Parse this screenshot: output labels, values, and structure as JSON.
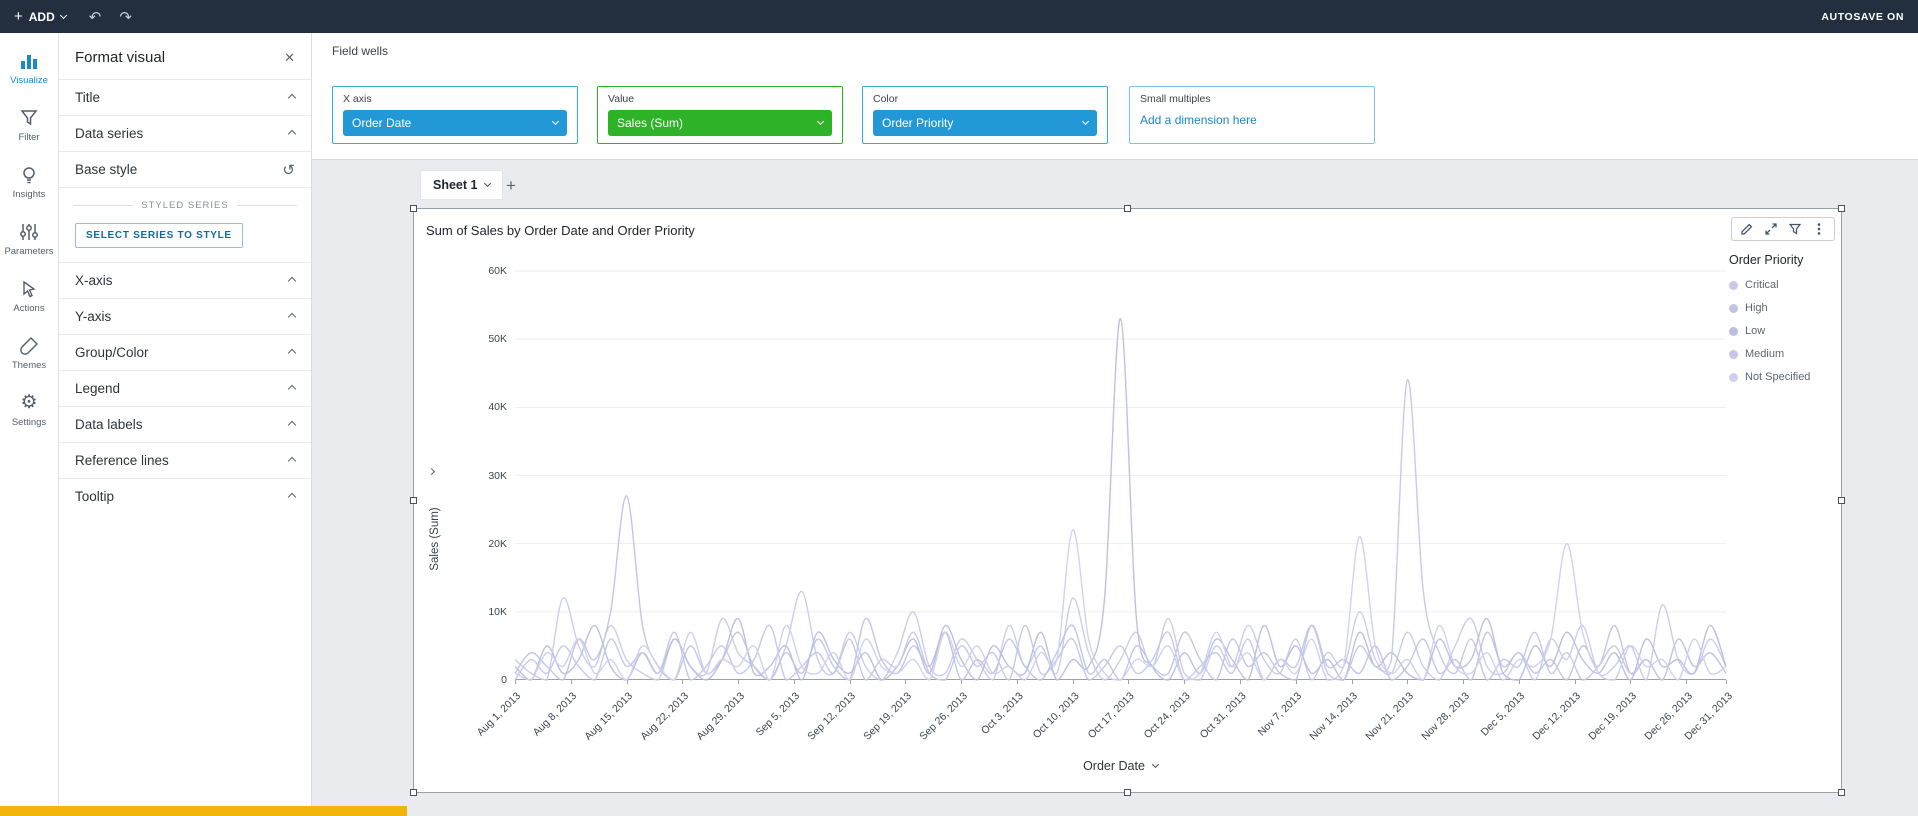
{
  "top_bar": {
    "add_label": "ADD",
    "autosave_label": "AUTOSAVE ON"
  },
  "nav_rail": {
    "items": [
      {
        "label": "Visualize",
        "icon": "bar-chart-icon",
        "active": true
      },
      {
        "label": "Filter",
        "icon": "funnel-icon",
        "active": false
      },
      {
        "label": "Insights",
        "icon": "lightbulb-icon",
        "active": false
      },
      {
        "label": "Parameters",
        "icon": "sliders-icon",
        "active": false
      },
      {
        "label": "Actions",
        "icon": "cursor-icon",
        "active": false
      },
      {
        "label": "Themes",
        "icon": "brush-icon",
        "active": false
      },
      {
        "label": "Settings",
        "icon": "gear-icon",
        "active": false
      }
    ]
  },
  "format_panel": {
    "title": "Format visual",
    "sections": [
      "Title",
      "Data series",
      "Base style",
      "X-axis",
      "Y-axis",
      "Group/Color",
      "Legend",
      "Data labels",
      "Reference lines",
      "Tooltip"
    ],
    "styled_series_label": "STYLED SERIES",
    "select_series_button": "SELECT SERIES TO STYLE"
  },
  "field_wells": {
    "label": "Field wells",
    "wells": [
      {
        "name": "X axis",
        "value": "Order Date",
        "accent_color": "#2398d6"
      },
      {
        "name": "Value",
        "value": "Sales (Sum)",
        "accent_color": "#2eb227"
      },
      {
        "name": "Color",
        "value": "Order Priority",
        "accent_color": "#2398d6"
      },
      {
        "name": "Small multiples",
        "placeholder": "Add a dimension here",
        "accent_color": "#79c4e8"
      }
    ]
  },
  "sheet_tabs": {
    "tabs": [
      {
        "label": "Sheet 1"
      }
    ]
  },
  "visual": {
    "title": "Sum of Sales by Order Date and Order Priority",
    "toolbar_icons": [
      "pencil-icon",
      "expand-icon",
      "filter-icon",
      "menu-dots-icon"
    ],
    "legend_title": "Order Priority",
    "legend_items": [
      "Critical",
      "High",
      "Low",
      "Medium",
      "Not Specified"
    ]
  },
  "chart_data": {
    "type": "line",
    "title": "Sum of Sales by Order Date and Order Priority",
    "xlabel": "Order Date",
    "ylabel": "Sales (Sum)",
    "ylim": [
      0,
      60000
    ],
    "values_unit": "thousands",
    "grid": "horizontal",
    "legend_position": "right",
    "y_tick_labels": [
      "0",
      "10K",
      "20K",
      "30K",
      "40K",
      "50K",
      "60K"
    ],
    "x_tick_labels": [
      "Aug 1, 2013",
      "Aug 8, 2013",
      "Aug 15, 2013",
      "Aug 22, 2013",
      "Aug 29, 2013",
      "Sep 5, 2013",
      "Sep 12, 2013",
      "Sep 19, 2013",
      "Sep 26, 2013",
      "Oct 3, 2013",
      "Oct 10, 2013",
      "Oct 17, 2013",
      "Oct 24, 2013",
      "Oct 31, 2013",
      "Nov 7, 2013",
      "Nov 14, 2013",
      "Nov 21, 2013",
      "Nov 28, 2013",
      "Dec 5, 2013",
      "Dec 12, 2013",
      "Dec 19, 2013",
      "Dec 26, 2013",
      "Dec 31, 2013"
    ],
    "x_tick_days": [
      0,
      7,
      14,
      21,
      28,
      35,
      42,
      49,
      56,
      63,
      70,
      77,
      84,
      91,
      98,
      105,
      112,
      119,
      126,
      133,
      140,
      147,
      152
    ],
    "total_days": 152,
    "sample_interval_days": 2,
    "series": [
      {
        "name": "Critical",
        "color": "#c9cae9",
        "values": [
          3,
          1,
          0,
          12,
          5,
          2,
          8,
          3,
          1,
          0,
          6,
          2,
          1,
          9,
          4,
          2,
          0,
          5,
          13,
          3,
          1,
          7,
          2,
          0,
          4,
          10,
          2,
          1,
          6,
          3,
          0,
          8,
          2,
          5,
          1,
          12,
          4,
          0,
          3,
          7,
          2,
          9,
          1,
          0,
          5,
          2,
          8,
          3,
          1,
          6,
          0,
          4,
          2,
          10,
          3,
          1,
          7,
          2,
          0,
          5,
          9,
          2,
          1,
          4,
          0,
          6,
          3,
          8,
          1,
          2,
          5,
          0,
          11,
          3,
          1,
          6,
          2
        ]
      },
      {
        "name": "High",
        "color": "#c1c3e5",
        "values": [
          1,
          4,
          2,
          0,
          6,
          3,
          10,
          27,
          8,
          2,
          0,
          5,
          1,
          3,
          7,
          2,
          0,
          4,
          1,
          6,
          2,
          0,
          9,
          3,
          1,
          5,
          2,
          7,
          0,
          3,
          1,
          6,
          2,
          0,
          4,
          8,
          1,
          3,
          0,
          5,
          2,
          1,
          7,
          3,
          0,
          6,
          2,
          4,
          1,
          0,
          8,
          2,
          3,
          1,
          5,
          0,
          2,
          6,
          1,
          3,
          0,
          7,
          2,
          4,
          1,
          3,
          0,
          5,
          2,
          8,
          1,
          3,
          0,
          6,
          2,
          4,
          1
        ]
      },
      {
        "name": "Low",
        "color": "#bbbde2",
        "values": [
          2,
          0,
          5,
          1,
          3,
          8,
          2,
          0,
          4,
          1,
          6,
          2,
          0,
          3,
          9,
          1,
          2,
          5,
          0,
          7,
          3,
          1,
          4,
          0,
          2,
          6,
          1,
          8,
          3,
          0,
          5,
          2,
          1,
          7,
          0,
          3,
          2,
          12,
          53,
          9,
          2,
          0,
          4,
          1,
          6,
          3,
          0,
          8,
          2,
          5,
          1,
          3,
          0,
          7,
          2,
          4,
          1,
          0,
          6,
          2,
          3,
          9,
          1,
          0,
          5,
          2,
          7,
          3,
          1,
          4,
          0,
          6,
          2,
          3,
          1,
          8,
          2
        ]
      },
      {
        "name": "Medium",
        "color": "#c5c6e8",
        "values": [
          0,
          3,
          1,
          5,
          2,
          0,
          6,
          2,
          4,
          1,
          7,
          0,
          2,
          5,
          1,
          3,
          8,
          0,
          2,
          4,
          1,
          6,
          0,
          3,
          2,
          7,
          1,
          0,
          5,
          2,
          4,
          0,
          8,
          1,
          3,
          6,
          0,
          2,
          5,
          1,
          3,
          7,
          0,
          2,
          4,
          1,
          6,
          0,
          3,
          2,
          8,
          1,
          0,
          5,
          2,
          3,
          44,
          13,
          4,
          1,
          6,
          0,
          3,
          2,
          7,
          1,
          4,
          0,
          2,
          5,
          1,
          3,
          0,
          6,
          2,
          4,
          1
        ]
      },
      {
        "name": "Not Specified",
        "color": "#cfd0ec",
        "values": [
          1,
          0,
          4,
          2,
          6,
          1,
          3,
          0,
          5,
          2,
          0,
          7,
          1,
          3,
          2,
          5,
          0,
          8,
          2,
          1,
          4,
          0,
          6,
          2,
          1,
          3,
          0,
          7,
          2,
          5,
          1,
          2,
          0,
          4,
          3,
          22,
          6,
          1,
          0,
          3,
          2,
          5,
          0,
          1,
          7,
          2,
          4,
          0,
          3,
          1,
          6,
          0,
          2,
          21,
          5,
          1,
          3,
          0,
          8,
          2,
          1,
          4,
          0,
          3,
          2,
          6,
          20,
          7,
          1,
          0,
          5,
          2,
          3,
          0,
          6,
          1,
          2
        ]
      }
    ]
  }
}
